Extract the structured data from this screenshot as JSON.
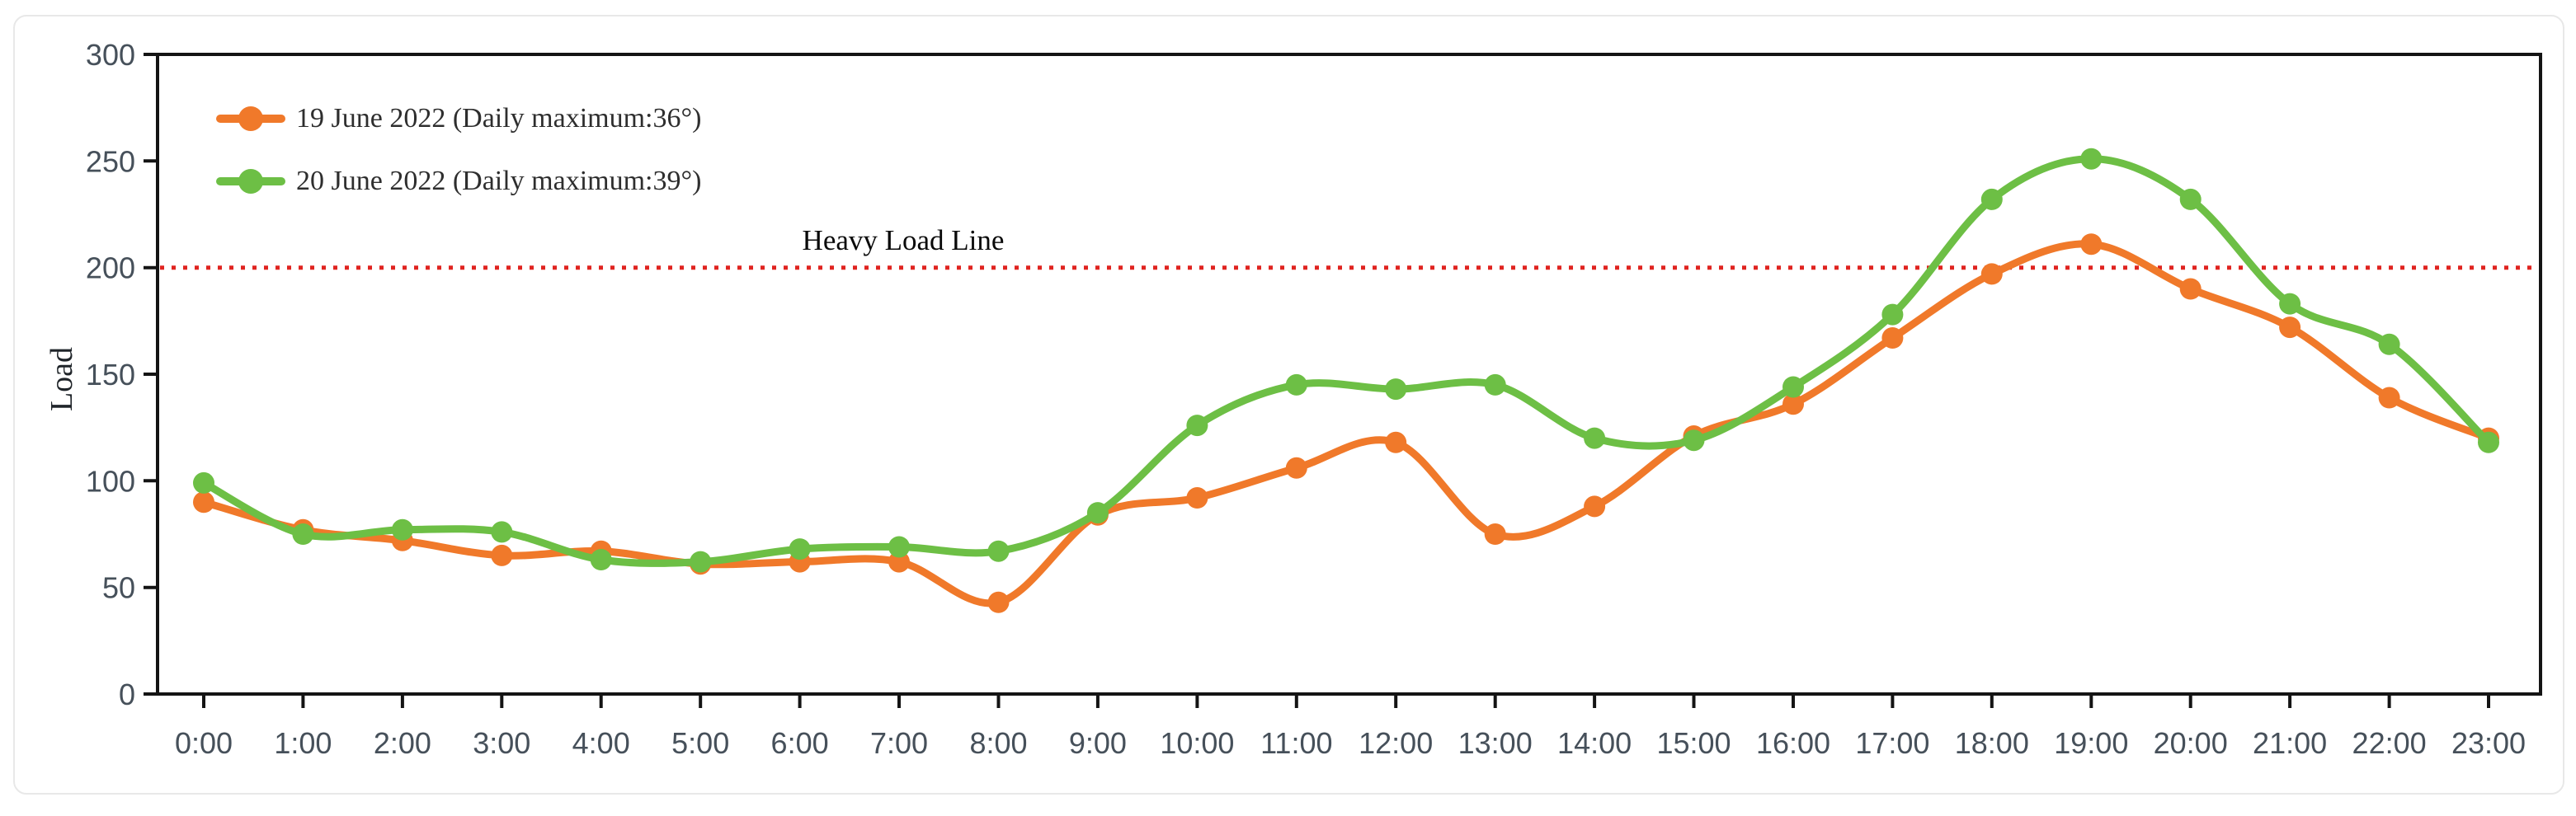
{
  "chart_data": {
    "type": "line",
    "title": "",
    "ylabel": "Load",
    "xlabel": "",
    "grid": false,
    "legend_position": "top-left",
    "marker": "circle",
    "x_labels": [
      "0:00",
      "1:00",
      "2:00",
      "3:00",
      "4:00",
      "5:00",
      "6:00",
      "7:00",
      "8:00",
      "9:00",
      "10:00",
      "11:00",
      "12:00",
      "13:00",
      "14:00",
      "15:00",
      "16:00",
      "17:00",
      "18:00",
      "19:00",
      "20:00",
      "21:00",
      "22:00",
      "23:00"
    ],
    "series": [
      {
        "name": "19 June 2022 (Daily maximum:36°)",
        "color": "#f0792a",
        "values": [
          90,
          77,
          72,
          65,
          67,
          61,
          62,
          62,
          43,
          84,
          92,
          106,
          118,
          75,
          88,
          121,
          136,
          167,
          197,
          211,
          190,
          172,
          139,
          120
        ]
      },
      {
        "name": "20 June 2022 (Daily maximum:39°)",
        "color": "#6dbf45",
        "values": [
          99,
          75,
          77,
          76,
          63,
          62,
          68,
          69,
          67,
          85,
          126,
          145,
          143,
          145,
          120,
          119,
          144,
          178,
          232,
          251,
          232,
          183,
          164,
          118
        ]
      }
    ],
    "reference_line": {
      "label": "Heavy Load Line",
      "value": 200,
      "color": "#e02420",
      "style": "dotted"
    },
    "y_axis": {
      "min": 0,
      "max": 300,
      "step": 50
    },
    "axis_color": "#141414",
    "tick_label_color": "#46505a"
  }
}
